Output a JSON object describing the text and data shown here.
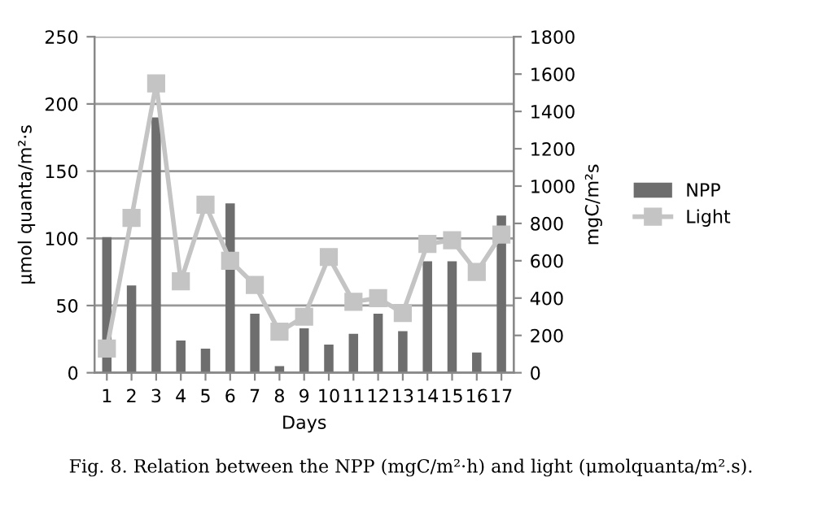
{
  "chart_data": {
    "type": "bar",
    "xlabel": "Days",
    "ylabel": "μmol quanta/m²·s",
    "y2label": "mgC/m²s",
    "categories": [
      "1",
      "2",
      "3",
      "4",
      "5",
      "6",
      "7",
      "8",
      "9",
      "10",
      "11",
      "12",
      "13",
      "14",
      "15",
      "16",
      "17"
    ],
    "series": [
      {
        "name": "NPP",
        "color": "#6e6e6e",
        "values": [
          101,
          65,
          190,
          24,
          18,
          126,
          44,
          5,
          33,
          21,
          29,
          44,
          31,
          83,
          83,
          15,
          117
        ]
      },
      {
        "name": "Light",
        "type": "line",
        "axis": "y2",
        "color": "#c4c4c4",
        "marker": "square",
        "values": [
          130,
          830,
          1550,
          490,
          900,
          600,
          470,
          220,
          300,
          620,
          380,
          400,
          320,
          690,
          710,
          540,
          740
        ]
      }
    ],
    "ylim": [
      0,
      250
    ],
    "yticks": [
      0,
      50,
      100,
      150,
      200,
      250
    ],
    "y2lim": [
      0,
      1800
    ],
    "y2ticks": [
      0,
      200,
      400,
      600,
      800,
      1000,
      1200,
      1400,
      1600,
      1800
    ],
    "grid": "y",
    "legend": "right",
    "annotations": [
      "Fig. 8. Relation between the NPP (mgC/m²·h) and light (μmolquanta/m².s)."
    ]
  }
}
